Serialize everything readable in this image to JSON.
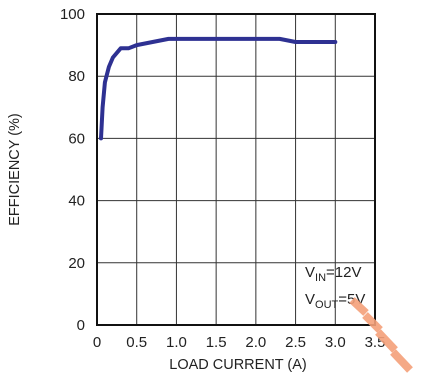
{
  "chart_data": {
    "type": "line",
    "title": "",
    "xlabel": "LOAD CURRENT (A)",
    "ylabel": "EFFICIENCY (%)",
    "xlim": [
      0,
      3.5
    ],
    "ylim": [
      0,
      100
    ],
    "x_ticks": [
      "0",
      "0.5",
      "1.0",
      "1.5",
      "2.0",
      "2.5",
      "3.0",
      "3.5"
    ],
    "y_ticks": [
      "0",
      "20",
      "40",
      "60",
      "80",
      "100"
    ],
    "grid": true,
    "line_color": "#2e3192",
    "watermark_color": "#f5a07a",
    "annotations": [
      {
        "main": "V",
        "sub": "IN",
        "tail": "=12V"
      },
      {
        "main": "V",
        "sub": "OUT",
        "tail": "=5V"
      }
    ],
    "series": [
      {
        "x": [
          0.05,
          0.07,
          0.1,
          0.15,
          0.2,
          0.3,
          0.4,
          0.5,
          0.7,
          0.9,
          1.0,
          1.5,
          2.0,
          2.3,
          2.5,
          2.8,
          3.0
        ],
        "y": [
          60,
          70,
          78,
          83,
          86,
          89,
          89,
          90,
          91,
          92,
          92,
          92,
          92,
          92,
          91,
          91,
          91
        ]
      }
    ]
  }
}
